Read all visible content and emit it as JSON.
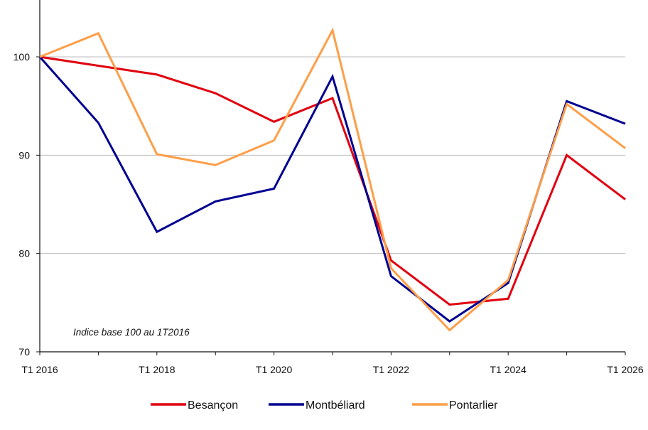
{
  "chart_data": {
    "type": "line",
    "x": [
      "T1 2016",
      "T1 2017",
      "T1 2018",
      "T1 2019",
      "T1 2020",
      "T1 2021",
      "T1 2022",
      "T1 2023",
      "T1 2024",
      "T1 2025",
      "T1 2026"
    ],
    "x_tick_labels": [
      "T1 2016",
      "T1 2018",
      "T1 2020",
      "T1 2022",
      "T1 2024",
      "T1 2026"
    ],
    "y_ticks": [
      70,
      80,
      90,
      100
    ],
    "ylim": [
      70,
      105
    ],
    "grid": true,
    "annotation": "Indice base 100 au 1T2016",
    "legend_position": "bottom",
    "series": [
      {
        "name": "Besançon",
        "color": "#e1000f",
        "values": [
          100,
          99.1,
          98.2,
          96.3,
          93.4,
          95.8,
          79.3,
          74.8,
          75.4,
          90.0,
          85.5
        ]
      },
      {
        "name": "Montbéliard",
        "color": "#000091",
        "values": [
          100,
          93.3,
          82.2,
          85.3,
          86.6,
          98.0,
          77.7,
          73.1,
          77.0,
          95.5,
          93.2
        ]
      },
      {
        "name": "Pontarlier",
        "color": "#fe9e48",
        "values": [
          100,
          102.4,
          90.1,
          89.0,
          91.5,
          102.7,
          78.5,
          72.2,
          77.3,
          95.2,
          90.7
        ]
      }
    ]
  }
}
